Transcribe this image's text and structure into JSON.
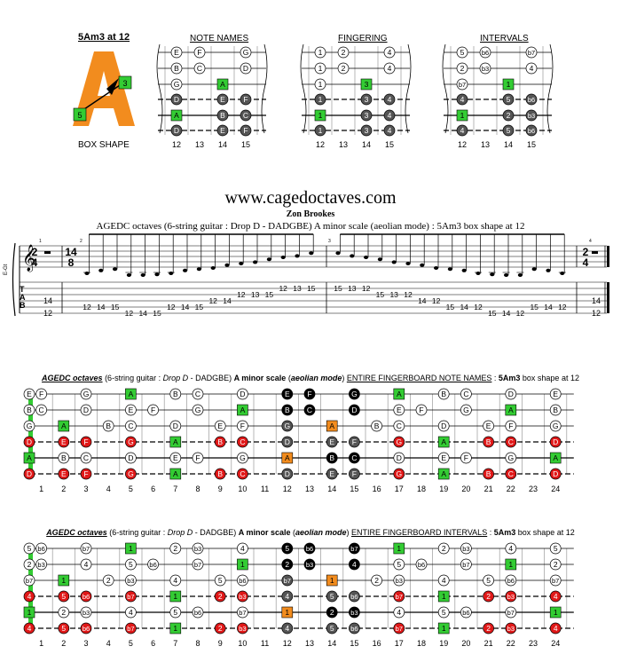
{
  "header": {
    "box_title": "5Am3 at 12",
    "box_shape_label": "BOX SHAPE",
    "box_letter": "A",
    "box_marker_top": "3",
    "box_marker_bottom": "5",
    "diagram_titles": [
      "NOTE NAMES",
      "FINGERING",
      "INTERVALS"
    ],
    "fret_numbers": [
      "12",
      "13",
      "14",
      "15"
    ]
  },
  "mini": {
    "notes": [
      [
        "E",
        "F",
        "",
        "G"
      ],
      [
        "B",
        "C",
        "",
        "D"
      ],
      [
        "G",
        "",
        "A",
        ""
      ],
      [
        "D",
        "",
        "E",
        "F"
      ],
      [
        "A",
        "",
        "B",
        "C"
      ],
      [
        "D",
        "",
        "E",
        "F"
      ]
    ],
    "fingers": [
      [
        "1",
        "2",
        "",
        "4"
      ],
      [
        "1",
        "2",
        "",
        "4"
      ],
      [
        "1",
        "",
        "3",
        ""
      ],
      [
        "1",
        "",
        "3",
        "4"
      ],
      [
        "1",
        "",
        "3",
        "4"
      ],
      [
        "1",
        "",
        "3",
        "4"
      ]
    ],
    "intervals": [
      [
        "5",
        "b6",
        "",
        "b7"
      ],
      [
        "2",
        "b3",
        "",
        "4"
      ],
      [
        "b7",
        "",
        "1",
        ""
      ],
      [
        "4",
        "",
        "5",
        "b6"
      ],
      [
        "1",
        "",
        "2",
        "b3"
      ],
      [
        "4",
        "",
        "5",
        "b6"
      ]
    ]
  },
  "score": {
    "site": "www.cagedoctaves.com",
    "author": "Zon Brookes",
    "subtitle": "AGEDC octaves (6-string guitar : Drop D - DADGBE) A minor scale (aeolian mode) : 5Am3 box shape at 12",
    "tuning_label": "E-Gt",
    "time_start": [
      "2",
      "4"
    ],
    "time_main": [
      "14",
      "8"
    ],
    "time_end": [
      "2",
      "4"
    ],
    "measure_numbers": [
      "1",
      "2",
      "3",
      "4"
    ],
    "tab_letters": [
      "T",
      "A",
      "B"
    ],
    "tab_start": [
      "14",
      "12"
    ],
    "tab_end": [
      "14",
      "12"
    ],
    "tab_numbers": [
      {
        "s": 4,
        "v": "12"
      },
      {
        "s": 4,
        "v": "14"
      },
      {
        "s": 4,
        "v": "15"
      },
      {
        "s": 5,
        "v": "12"
      },
      {
        "s": 5,
        "v": "14"
      },
      {
        "s": 5,
        "v": "15"
      },
      {
        "s": 4,
        "v": "12"
      },
      {
        "s": 4,
        "v": "14"
      },
      {
        "s": 4,
        "v": "15"
      },
      {
        "s": 3,
        "v": "12"
      },
      {
        "s": 3,
        "v": "14"
      },
      {
        "s": 2,
        "v": "12"
      },
      {
        "s": 2,
        "v": "13"
      },
      {
        "s": 2,
        "v": "15"
      },
      {
        "s": 1,
        "v": "12"
      },
      {
        "s": 1,
        "v": "13"
      },
      {
        "s": 1,
        "v": "15"
      },
      {
        "s": 1,
        "v": "15"
      },
      {
        "s": 1,
        "v": "13"
      },
      {
        "s": 1,
        "v": "12"
      },
      {
        "s": 2,
        "v": "15"
      },
      {
        "s": 2,
        "v": "13"
      },
      {
        "s": 2,
        "v": "12"
      },
      {
        "s": 3,
        "v": "14"
      },
      {
        "s": 3,
        "v": "12"
      },
      {
        "s": 4,
        "v": "15"
      },
      {
        "s": 4,
        "v": "14"
      },
      {
        "s": 4,
        "v": "12"
      },
      {
        "s": 5,
        "v": "15"
      },
      {
        "s": 5,
        "v": "14"
      },
      {
        "s": 5,
        "v": "12"
      },
      {
        "s": 4,
        "v": "15"
      },
      {
        "s": 4,
        "v": "14"
      },
      {
        "s": 4,
        "v": "12"
      }
    ]
  },
  "board_notes": {
    "title_parts": {
      "a": "AGEDC octaves",
      "b": " (6-string guitar : ",
      "c": "Drop D",
      "d": " - DADGBE) ",
      "e": "A minor scale",
      "f": " (",
      "g": "aeolian mode",
      "h": ") ",
      "i": "ENTIRE FINGERBOARD NOTE NAMES",
      "j": " : ",
      "k": "5Am3",
      "l": " box shape at 12"
    },
    "open": [
      "E",
      "B",
      "G",
      "D",
      "A",
      "D"
    ],
    "rows": [
      [
        "F",
        "",
        "G",
        "",
        "A",
        "",
        "B",
        "C",
        "",
        "D",
        "",
        "E",
        "F",
        "",
        "G",
        "",
        "A",
        "",
        "B",
        "C",
        "",
        "D",
        "",
        "E"
      ],
      [
        "C",
        "",
        "D",
        "",
        "E",
        "F",
        "",
        "G",
        "",
        "A",
        "",
        "B",
        "C",
        "",
        "D",
        "",
        "E",
        "F",
        "",
        "G",
        "",
        "A",
        "",
        "B"
      ],
      [
        "",
        "A",
        "",
        "B",
        "C",
        "",
        "D",
        "",
        "E",
        "F",
        "",
        "G",
        "",
        "A",
        "",
        "B",
        "C",
        "",
        "D",
        "",
        "E",
        "F",
        "",
        "G"
      ],
      [
        "",
        "E",
        "F",
        "",
        "G",
        "",
        "A",
        "",
        "B",
        "C",
        "",
        "D",
        "",
        "E",
        "F",
        "",
        "G",
        "",
        "A",
        "",
        "B",
        "C",
        "",
        "D"
      ],
      [
        "",
        "B",
        "C",
        "",
        "D",
        "",
        "E",
        "F",
        "",
        "G",
        "",
        "A",
        "",
        "B",
        "C",
        "",
        "D",
        "",
        "E",
        "F",
        "",
        "G",
        "",
        "A"
      ],
      [
        "",
        "E",
        "F",
        "",
        "G",
        "",
        "A",
        "",
        "B",
        "C",
        "",
        "D",
        "",
        "E",
        "F",
        "",
        "G",
        "",
        "A",
        "",
        "B",
        "C",
        "",
        "D"
      ]
    ]
  },
  "board_intervals": {
    "title_parts": {
      "a": "AGEDC octaves",
      "b": " (6-string guitar : ",
      "c": "Drop D",
      "d": " - DADGBE) ",
      "e": "A minor scale",
      "f": " (",
      "g": "aeolian mode",
      "h": ") ",
      "i": "ENTIRE FINGERBOARD INTERVALS",
      "j": " : ",
      "k": "5Am3",
      "l": " box shape at 12"
    },
    "open": [
      "5",
      "2",
      "b7",
      "4",
      "1",
      "4"
    ],
    "rows": [
      [
        "b6",
        "",
        "b7",
        "",
        "1",
        "",
        "2",
        "b3",
        "",
        "4",
        "",
        "5",
        "b6",
        "",
        "b7",
        "",
        "1",
        "",
        "2",
        "b3",
        "",
        "4",
        "",
        "5"
      ],
      [
        "b3",
        "",
        "4",
        "",
        "5",
        "b6",
        "",
        "b7",
        "",
        "1",
        "",
        "2",
        "b3",
        "",
        "4",
        "",
        "5",
        "b6",
        "",
        "b7",
        "",
        "1",
        "",
        "2"
      ],
      [
        "",
        "1",
        "",
        "2",
        "b3",
        "",
        "4",
        "",
        "5",
        "b6",
        "",
        "b7",
        "",
        "1",
        "",
        "2",
        "b3",
        "",
        "4",
        "",
        "5",
        "b6",
        "",
        "b7"
      ],
      [
        "",
        "5",
        "b6",
        "",
        "b7",
        "",
        "1",
        "",
        "2",
        "b3",
        "",
        "4",
        "",
        "5",
        "b6",
        "",
        "b7",
        "",
        "1",
        "",
        "2",
        "b3",
        "",
        "4"
      ],
      [
        "",
        "2",
        "b3",
        "",
        "4",
        "",
        "5",
        "b6",
        "",
        "b7",
        "",
        "1",
        "",
        "2",
        "b3",
        "",
        "4",
        "",
        "5",
        "b6",
        "",
        "b7",
        "",
        "1"
      ],
      [
        "",
        "5",
        "b6",
        "",
        "b7",
        "",
        "1",
        "",
        "2",
        "b3",
        "",
        "4",
        "",
        "5",
        "b6",
        "",
        "b7",
        "",
        "1",
        "",
        "2",
        "b3",
        "",
        "4"
      ]
    ]
  },
  "fret_labels": [
    "1",
    "2",
    "3",
    "4",
    "5",
    "6",
    "7",
    "8",
    "9",
    "10",
    "11",
    "12",
    "13",
    "14",
    "15",
    "16",
    "17",
    "18",
    "19",
    "20",
    "21",
    "22",
    "23",
    "24"
  ],
  "colors": {
    "orange": "#f28c1e",
    "green": "#33cc33",
    "red": "#e01818",
    "gray": "#555555",
    "black": "#000000"
  }
}
